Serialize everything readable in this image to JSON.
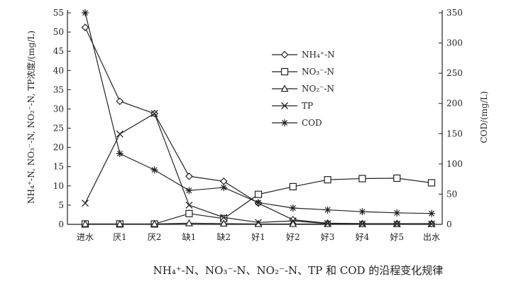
{
  "chart_data": {
    "type": "line",
    "categories": [
      "进水",
      "厌1",
      "厌2",
      "缺1",
      "缺2",
      "好1",
      "好2",
      "好3",
      "好4",
      "好5",
      "出水"
    ],
    "series": [
      {
        "name": "NH₄⁺-N",
        "marker": "diamond",
        "axis": "left",
        "values": [
          51.2,
          32,
          28.8,
          12.5,
          11.2,
          5.5,
          1.2,
          0.3,
          0.2,
          0.2,
          0.2
        ]
      },
      {
        "name": "NO₃⁻-N",
        "marker": "square",
        "axis": "left",
        "values": [
          0.1,
          0.1,
          0.1,
          2.8,
          1.5,
          7.8,
          9.8,
          11.6,
          11.9,
          12.0,
          10.8
        ]
      },
      {
        "name": "NO₂⁻-N",
        "marker": "triangle",
        "axis": "left",
        "values": [
          0.1,
          0.1,
          0.1,
          0.3,
          0.2,
          0.1,
          0.1,
          0.1,
          0.1,
          0.1,
          0.1
        ]
      },
      {
        "name": "TP",
        "marker": "x",
        "axis": "left",
        "values": [
          5.5,
          23.5,
          28.8,
          5.0,
          1.8,
          0.5,
          0.9,
          0.2,
          0.1,
          0.1,
          0.1
        ]
      },
      {
        "name": "COD",
        "marker": "star",
        "axis": "right",
        "values": [
          350,
          117,
          90,
          56,
          61,
          36,
          27,
          24,
          21,
          19,
          18
        ]
      }
    ],
    "ylabel_left": "NH₄⁺-N, NO₃⁻-N, NO₂⁻-N, TP浓度/(mg/L)",
    "ylabel_right": "COD/(mg/L)",
    "ylim_left": [
      0,
      55
    ],
    "yticks_left": [
      0,
      5,
      10,
      15,
      20,
      25,
      30,
      35,
      40,
      45,
      50,
      55
    ],
    "ylim_right": [
      0,
      350
    ],
    "yticks_right": [
      0,
      50,
      100,
      150,
      200,
      250,
      300,
      350
    ],
    "legend_placement": "upper-center",
    "grid": false,
    "caption": "NH₄⁺-N、NO₃⁻-N、NO₂⁻-N、TP 和 COD 的沿程变化规律"
  }
}
